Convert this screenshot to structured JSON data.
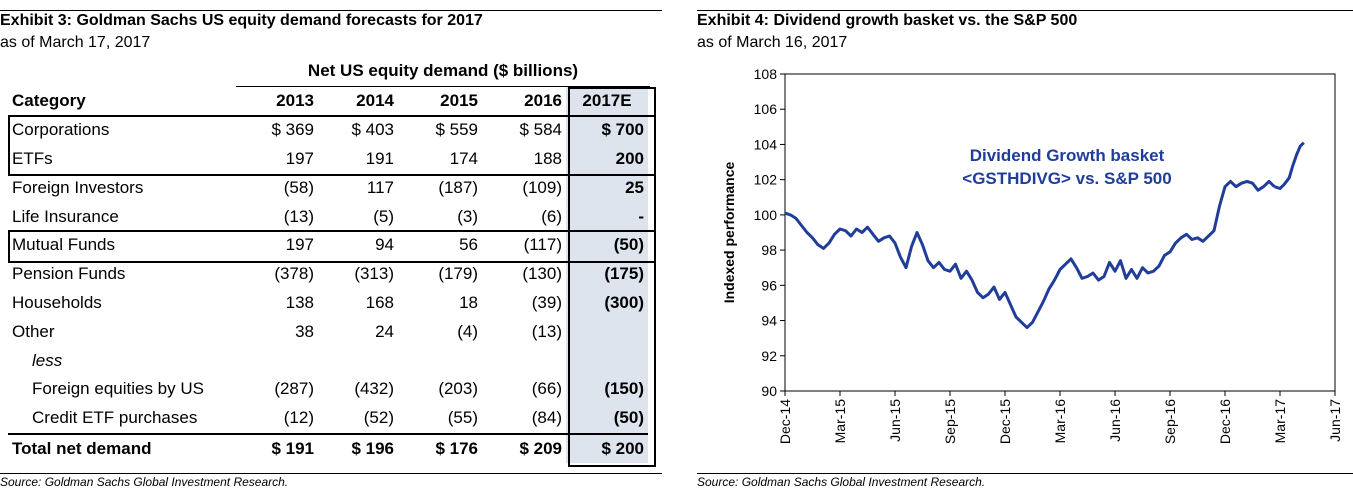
{
  "left": {
    "title": "Exhibit 3: Goldman Sachs US equity demand forecasts for 2017",
    "subtitle": "as of March 17, 2017",
    "group_header": "Net US equity demand ($ billions)",
    "columns": [
      "Category",
      "2013",
      "2014",
      "2015",
      "2016",
      "2017E"
    ],
    "rows": [
      {
        "cat": "Corporations",
        "v": [
          "$ 369",
          "$ 403",
          "$ 559",
          "$ 584",
          "$ 700"
        ]
      },
      {
        "cat": "ETFs",
        "v": [
          "197",
          "191",
          "174",
          "188",
          "200"
        ]
      },
      {
        "cat": "Foreign Investors",
        "v": [
          "(58)",
          "117",
          "(187)",
          "(109)",
          "25"
        ]
      },
      {
        "cat": "Life Insurance",
        "v": [
          "(13)",
          "(5)",
          "(3)",
          "(6)",
          "-"
        ]
      },
      {
        "cat": "Mutual Funds",
        "v": [
          "197",
          "94",
          "56",
          "(117)",
          "(50)"
        ]
      },
      {
        "cat": "Pension Funds",
        "v": [
          "(378)",
          "(313)",
          "(179)",
          "(130)",
          "(175)"
        ]
      },
      {
        "cat": "Households",
        "v": [
          "138",
          "168",
          "18",
          "(39)",
          "(300)"
        ]
      },
      {
        "cat": "Other",
        "v": [
          "38",
          "24",
          "(4)",
          "(13)",
          ""
        ]
      },
      {
        "cat": "less",
        "v": [
          "",
          "",
          "",
          "",
          ""
        ]
      },
      {
        "cat": "Foreign equities by US",
        "v": [
          "(287)",
          "(432)",
          "(203)",
          "(66)",
          "(150)"
        ]
      },
      {
        "cat": "Credit ETF purchases",
        "v": [
          "(12)",
          "(52)",
          "(55)",
          "(84)",
          "(50)"
        ]
      }
    ],
    "total": {
      "cat": "Total net demand",
      "v": [
        "$ 191",
        "$ 196",
        "$ 176",
        "$ 209",
        "$ 200"
      ]
    },
    "source": "Source: Goldman Sachs Global Investment Research."
  },
  "right": {
    "title": "Exhibit 4: Dividend growth basket vs. the S&P 500",
    "subtitle": "as of March 16, 2017",
    "source": "Source: Goldman Sachs Global Investment Research."
  },
  "chart_data": {
    "type": "line",
    "title": "",
    "annotation": [
      "Dividend Growth basket",
      "<GSTHDIVG> vs. S&P 500"
    ],
    "ylabel": "Indexed performance",
    "xlabel": "",
    "ylim": [
      90,
      108
    ],
    "yticks": [
      90,
      92,
      94,
      96,
      98,
      100,
      102,
      104,
      106,
      108
    ],
    "xlim": [
      0,
      30
    ],
    "xtick_positions": [
      0,
      3,
      6,
      9,
      12,
      15,
      18,
      21,
      24,
      27,
      30
    ],
    "xtick_labels": [
      "Dec-14",
      "Mar-15",
      "Jun-15",
      "Sep-15",
      "Dec-15",
      "Mar-16",
      "Jun-16",
      "Sep-16",
      "Dec-16",
      "Mar-17",
      "Jun-17"
    ],
    "grid": false,
    "color": "#1f3d99",
    "series": [
      {
        "name": "Dividend Growth basket vs. S&P 500",
        "x": [
          0,
          0.3,
          0.6,
          0.9,
          1.2,
          1.5,
          1.8,
          2.1,
          2.4,
          2.7,
          3.0,
          3.3,
          3.6,
          3.9,
          4.2,
          4.5,
          4.8,
          5.1,
          5.4,
          5.7,
          6.0,
          6.3,
          6.6,
          6.9,
          7.2,
          7.5,
          7.8,
          8.1,
          8.4,
          8.7,
          9.0,
          9.3,
          9.6,
          9.9,
          10.2,
          10.5,
          10.8,
          11.1,
          11.4,
          11.7,
          12.0,
          12.3,
          12.6,
          12.9,
          13.2,
          13.5,
          13.8,
          14.1,
          14.4,
          14.7,
          15.0,
          15.3,
          15.6,
          15.9,
          16.2,
          16.5,
          16.8,
          17.1,
          17.4,
          17.7,
          18.0,
          18.3,
          18.6,
          18.9,
          19.2,
          19.5,
          19.8,
          20.1,
          20.4,
          20.7,
          21.0,
          21.3,
          21.6,
          21.9,
          22.2,
          22.5,
          22.8,
          23.1,
          23.4,
          23.7,
          24.0,
          24.3,
          24.6,
          24.9,
          25.2,
          25.5,
          25.8,
          26.1,
          26.4,
          26.7
        ],
        "y": [
          100.1,
          100.0,
          99.8,
          99.4,
          99.0,
          98.7,
          98.3,
          98.1,
          98.4,
          98.9,
          99.2,
          99.1,
          98.8,
          99.2,
          99.0,
          99.3,
          98.9,
          98.5,
          98.7,
          98.8,
          98.4,
          97.6,
          97.0,
          98.2,
          99.0,
          98.3,
          97.4,
          97.0,
          97.3,
          96.9,
          96.8,
          97.2,
          96.4,
          96.8,
          96.3,
          95.6,
          95.3,
          95.5,
          95.9,
          95.2,
          95.6,
          94.9,
          94.2,
          93.9,
          93.6,
          93.9,
          94.5,
          95.1,
          95.8,
          96.3,
          96.9,
          97.2,
          97.5,
          97.0,
          96.4,
          96.5,
          96.7,
          96.3,
          96.5,
          97.3,
          96.8,
          97.4,
          96.4,
          96.9,
          96.4,
          97.0,
          96.7,
          96.8,
          97.1,
          97.7,
          97.9,
          98.4,
          98.7,
          98.9,
          98.6,
          98.7,
          98.5,
          98.8,
          99.1,
          100.5,
          101.6,
          101.9,
          101.6,
          101.8,
          101.9,
          101.8,
          101.4,
          101.6,
          101.9,
          101.6
        ]
      },
      {
        "name": "tail",
        "x": [
          26.7,
          27.0,
          27.2,
          27.5,
          27.7,
          27.9,
          28.1,
          28.3
        ],
        "y": [
          101.6,
          101.5,
          101.7,
          102.1,
          102.8,
          103.4,
          103.9,
          104.1
        ]
      }
    ]
  }
}
